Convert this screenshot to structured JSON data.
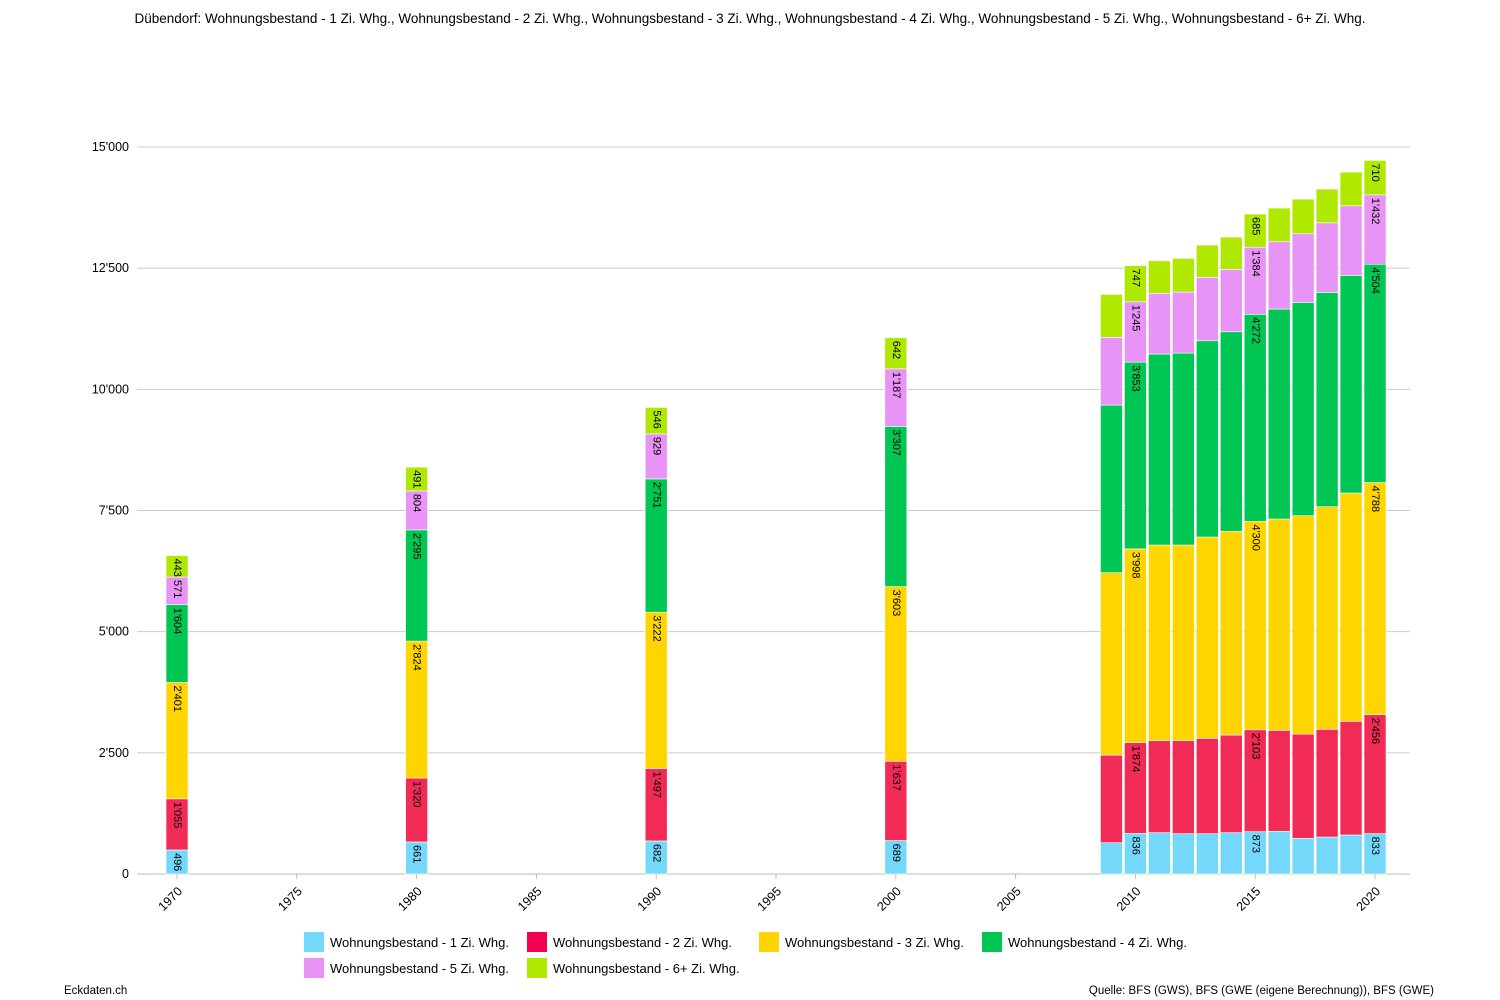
{
  "title": "Dübendorf: Wohnungsbestand - 1 Zi. Whg., Wohnungsbestand - 2 Zi. Whg., Wohnungsbestand - 3 Zi. Whg., Wohnungsbestand - 4 Zi. Whg., Wohnungsbestand - 5 Zi. Whg., Wohnungsbestand - 6+ Zi. Whg.",
  "footer": {
    "credit": "Eckdaten.ch",
    "source": "Quelle: BFS (GWS), BFS (GWE (eigene Berechnung)), BFS (GWE)"
  },
  "chart_data": {
    "type": "bar",
    "stacked": true,
    "title": "Dübendorf: Wohnungsbestand - 1 Zi. Whg., Wohnungsbestand - 2 Zi. Whg., Wohnungsbestand - 3 Zi. Whg., Wohnungsbestand - 4 Zi. Whg., Wohnungsbestand - 5 Zi. Whg., Wohnungsbestand - 6+ Zi. Whg.",
    "xlabel": "",
    "ylabel": "",
    "ylim": [
      0,
      15000
    ],
    "yticks": [
      "0",
      "2'500",
      "5'000",
      "7'500",
      "10'000",
      "12'500",
      "15'000"
    ],
    "xticks": [
      "1970",
      "1975",
      "1980",
      "1985",
      "1990",
      "1995",
      "2000",
      "2005",
      "2010",
      "2015",
      "2020"
    ],
    "grid": true,
    "legend_position": "bottom",
    "labeled_years": [
      1970,
      1980,
      1990,
      2000,
      2010,
      2015,
      2020
    ],
    "x": [
      1970,
      1980,
      1990,
      2000,
      2009,
      2010,
      2011,
      2012,
      2013,
      2014,
      2015,
      2016,
      2017,
      2018,
      2019,
      2020
    ],
    "series": [
      {
        "name": "Wohnungsbestand - 1 Zi. Whg.",
        "color": "#74d8fb",
        "values": [
          496,
          661,
          682,
          689,
          645,
          836,
          852,
          832,
          832,
          852,
          873,
          880,
          736,
          763,
          805,
          833
        ]
      },
      {
        "name": "Wohnungsbestand - 2 Zi. Whg.",
        "color": "#f22a56",
        "values": [
          1055,
          1320,
          1497,
          1637,
          1810,
          1874,
          1898,
          1918,
          1967,
          2016,
          2103,
          2084,
          2152,
          2222,
          2345,
          2456
        ]
      },
      {
        "name": "Wohnungsbestand - 3 Zi. Whg.",
        "color": "#ffd500",
        "values": [
          2401,
          2824,
          3222,
          3603,
          3761,
          3998,
          4037,
          4037,
          4153,
          4202,
          4300,
          4360,
          4504,
          4593,
          4710,
          4788
        ]
      },
      {
        "name": "Wohnungsbestand - 4 Zi. Whg.",
        "color": "#00c653",
        "values": [
          1604,
          2295,
          2751,
          3307,
          3459,
          3853,
          3941,
          3961,
          4050,
          4118,
          4272,
          4332,
          4402,
          4422,
          4491,
          4504
        ]
      },
      {
        "name": "Wohnungsbestand - 5 Zi. Whg.",
        "color": "#e893f6",
        "values": [
          571,
          804,
          929,
          1187,
          1397,
          1245,
          1252,
          1259,
          1308,
          1287,
          1384,
          1389,
          1416,
          1436,
          1436,
          1432
        ]
      },
      {
        "name": "Wohnungsbestand - 6+ Zi. Whg.",
        "color": "#afe800",
        "values": [
          443,
          491,
          546,
          642,
          887,
          747,
          672,
          695,
          666,
          666,
          685,
          695,
          715,
          696,
          695,
          710
        ]
      }
    ]
  }
}
